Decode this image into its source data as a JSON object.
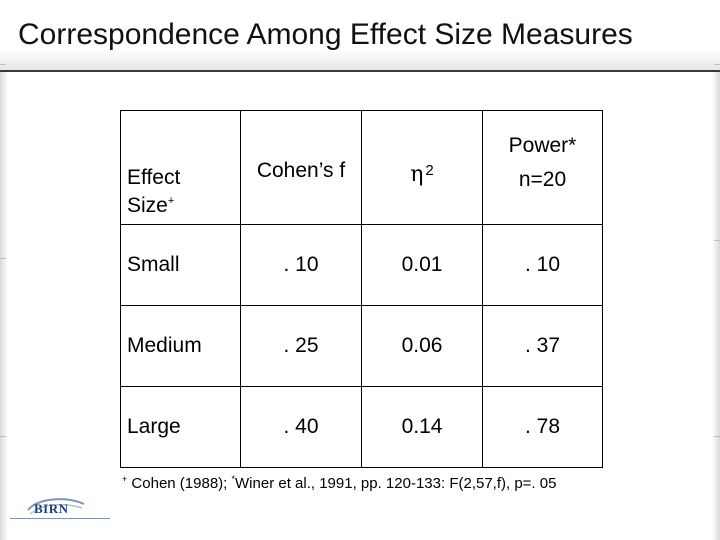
{
  "slide": {
    "title": "Correspondence Among Effect Size Measures"
  },
  "table": {
    "header": {
      "effect_size_line1": "Effect",
      "effect_size_line2": "Size",
      "effect_size_mark": "+",
      "cohens_f": "Cohen’s f",
      "eta_symbol": "η",
      "eta_exp": "2",
      "power_line1": "Power*",
      "power_line2": "n=20"
    },
    "rows": [
      {
        "label": "Small",
        "f": ". 10",
        "eta2": "0.01",
        "power": ". 10"
      },
      {
        "label": "Medium",
        "f": ". 25",
        "eta2": "0.06",
        "power": ". 37"
      },
      {
        "label": "Large",
        "f": ". 40",
        "eta2": "0.14",
        "power": ". 78"
      }
    ]
  },
  "footnote": {
    "mark1": "+",
    "text1": " Cohen (1988); ",
    "mark2": "*",
    "text2": "Winer et al., 1991, pp. 120-133: F(2,57,f), p=. 05"
  },
  "logo": {
    "text": "BIRN",
    "color": "#1f3f7a"
  }
}
